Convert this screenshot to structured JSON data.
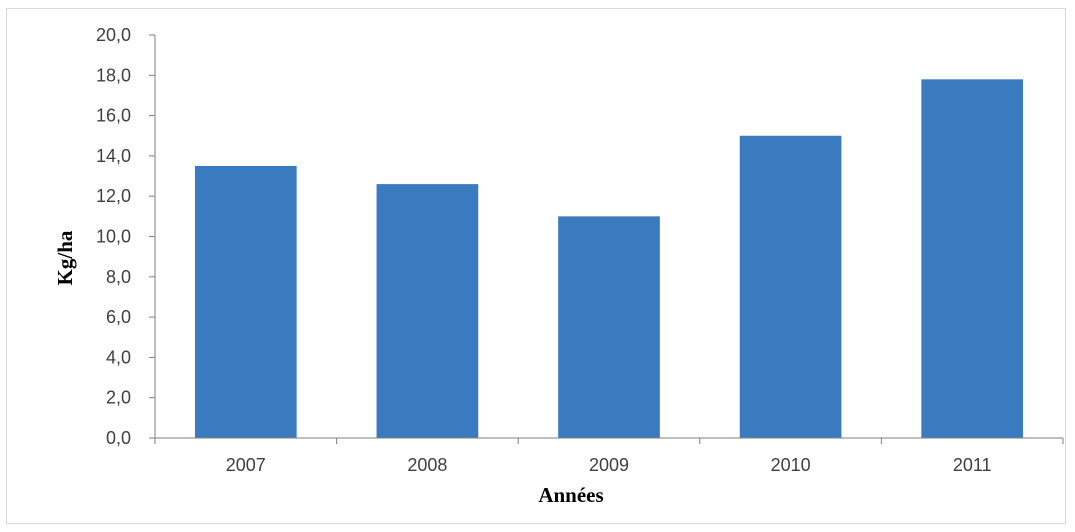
{
  "chart_data": {
    "type": "bar",
    "categories": [
      "2007",
      "2008",
      "2009",
      "2010",
      "2011"
    ],
    "values": [
      13.5,
      12.6,
      11.0,
      15.0,
      17.8
    ],
    "title": "",
    "xlabel": "Années",
    "ylabel": "Kg/ha",
    "ylim": [
      0,
      20
    ],
    "ytick_values": [
      0,
      2,
      4,
      6,
      8,
      10,
      12,
      14,
      16,
      18,
      20
    ],
    "ytick_labels": [
      "0,0",
      "2,0",
      "4,0",
      "6,0",
      "8,0",
      "10,0",
      "12,0",
      "14,0",
      "16,0",
      "18,0",
      "20,0"
    ],
    "grid": false,
    "legend": "none",
    "colors": {
      "bar": "#3a7bbf",
      "axis": "#7f7f7f",
      "tick_text": "#404040"
    }
  }
}
